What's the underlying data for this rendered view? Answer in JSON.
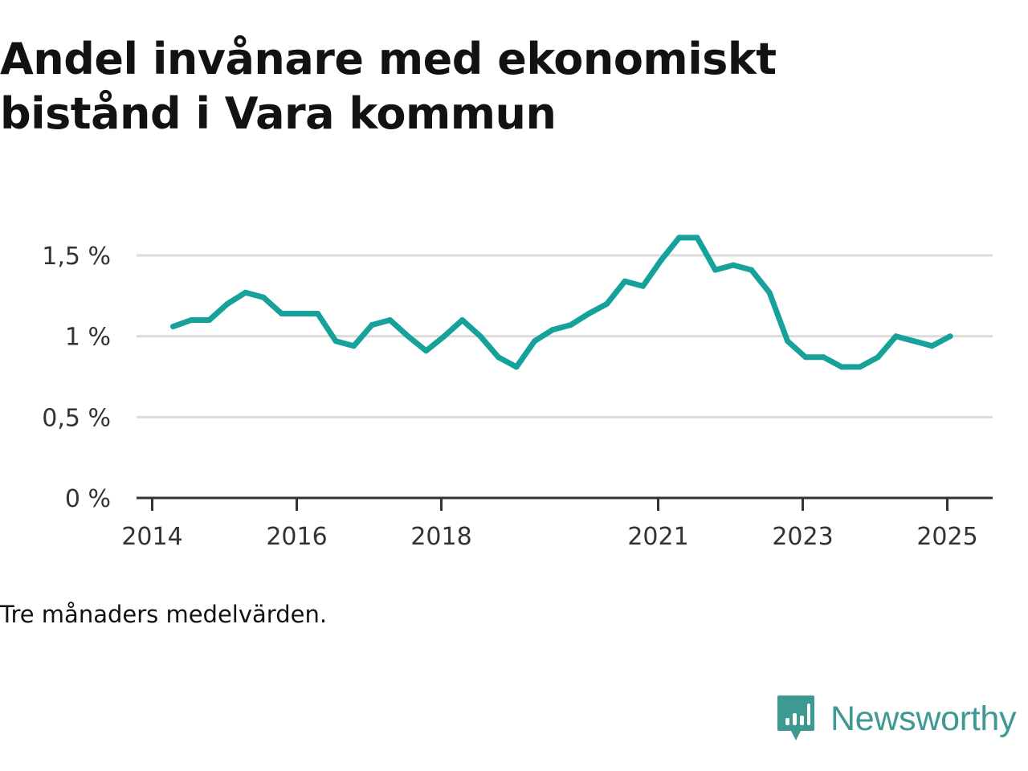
{
  "title": "Andel invånare med ekonomiskt bistånd i Vara kommun",
  "caption": "Tre månaders medelvärden.",
  "brand": {
    "name": "Newsworthy",
    "icon": "bar-chart-speech-bubble-icon",
    "color": "#3d9991"
  },
  "chart_data": {
    "type": "line",
    "title": "Andel invånare med ekonomiskt bistånd i Vara kommun",
    "xlabel": "",
    "ylabel": "",
    "line_color": "#17a19b",
    "grid": true,
    "xlim": [
      2013.9,
      2025.3
    ],
    "ylim": [
      0,
      1.5
    ],
    "y_ticks": [
      {
        "value": 0,
        "label": "0 %"
      },
      {
        "value": 0.5,
        "label": "0,5 %"
      },
      {
        "value": 1,
        "label": "1 %"
      },
      {
        "value": 1.5,
        "label": "1,5 %"
      }
    ],
    "x_ticks": [
      {
        "value": 2014,
        "label": "2014"
      },
      {
        "value": 2016,
        "label": "2016"
      },
      {
        "value": 2018,
        "label": "2018"
      },
      {
        "value": 2021,
        "label": "2021"
      },
      {
        "value": 2023,
        "label": "2023"
      },
      {
        "value": 2025,
        "label": "2025"
      }
    ],
    "series": [
      {
        "x": [
          2014.29,
          2014.54,
          2014.79,
          2015.04,
          2015.29,
          2015.54,
          2015.79,
          2016.04,
          2016.29,
          2016.54,
          2016.79,
          2017.04,
          2017.29,
          2017.54,
          2017.79,
          2018.04,
          2018.29,
          2018.54,
          2018.79,
          2019.04,
          2019.29,
          2019.54,
          2019.79,
          2020.04,
          2020.29,
          2020.54,
          2020.79,
          2021.04,
          2021.29,
          2021.54,
          2021.79,
          2022.04,
          2022.29,
          2022.54,
          2022.79,
          2023.04,
          2023.29,
          2023.54,
          2023.79,
          2024.04,
          2024.29,
          2024.54,
          2024.79,
          2025.04
        ],
        "values": [
          1.06,
          1.1,
          1.1,
          1.2,
          1.27,
          1.24,
          1.14,
          1.14,
          1.14,
          0.97,
          0.94,
          1.07,
          1.1,
          1.0,
          0.91,
          1.0,
          1.1,
          1.0,
          0.87,
          0.81,
          0.97,
          1.04,
          1.07,
          1.14,
          1.2,
          1.34,
          1.31,
          1.47,
          1.61,
          1.61,
          1.41,
          1.44,
          1.41,
          1.27,
          0.97,
          0.87,
          0.87,
          0.81,
          0.81,
          0.87,
          1.0,
          0.97,
          0.94,
          1.0
        ]
      }
    ]
  }
}
